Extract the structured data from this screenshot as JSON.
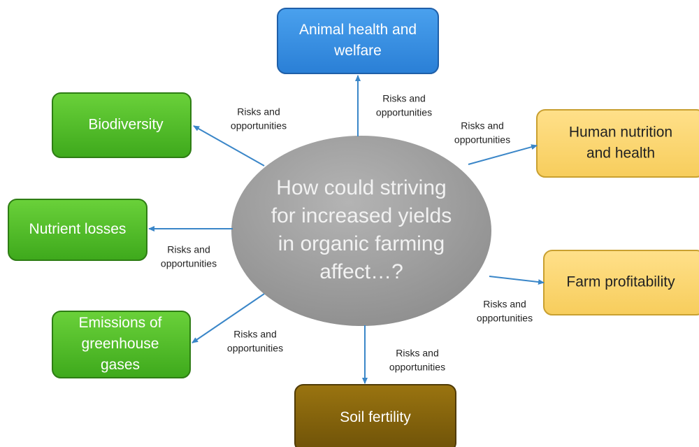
{
  "center": {
    "lines": [
      "How could striving",
      "for increased yields",
      "in organic farming",
      "affect…?"
    ]
  },
  "nodes": [
    {
      "lines": [
        "Animal health and",
        "welfare"
      ]
    },
    {
      "lines": [
        "Biodiversity"
      ]
    },
    {
      "lines": [
        "Human nutrition",
        "and health"
      ]
    },
    {
      "lines": [
        "Nutrient losses"
      ]
    },
    {
      "lines": [
        "Farm profitability"
      ]
    },
    {
      "lines": [
        "Emissions of",
        "greenhouse",
        "gases"
      ]
    },
    {
      "lines": [
        "Soil fertility"
      ]
    }
  ],
  "edges": [
    {
      "lines": [
        "Risks and",
        "opportunities"
      ]
    },
    {
      "lines": [
        "Risks and",
        "opportunities"
      ]
    },
    {
      "lines": [
        "Risks and",
        "opportunities"
      ]
    },
    {
      "lines": [
        "Risks and",
        "opportunities"
      ]
    },
    {
      "lines": [
        "Risks and",
        "opportunities"
      ]
    },
    {
      "lines": [
        "Risks and",
        "opportunities"
      ]
    },
    {
      "lines": [
        "Risks and",
        "opportunities"
      ]
    }
  ]
}
